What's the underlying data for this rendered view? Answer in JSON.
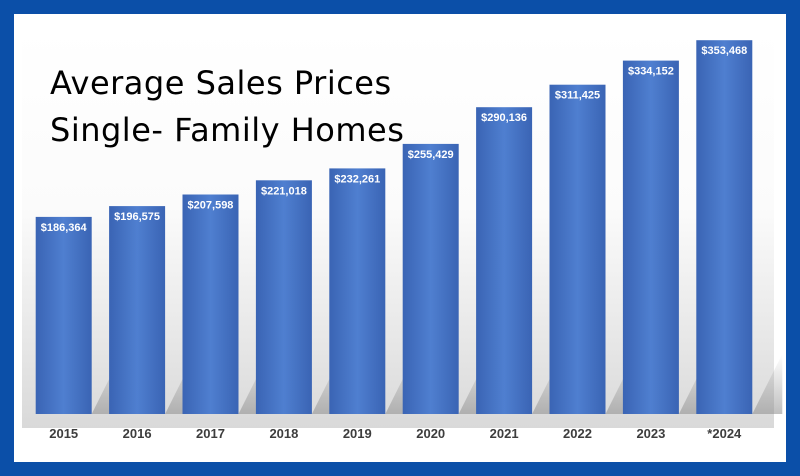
{
  "chart_data": {
    "type": "bar",
    "title_lines": [
      "Average Sales Prices",
      "Single- Family Homes"
    ],
    "categories": [
      "2015",
      "2016",
      "2017",
      "2018",
      "2019",
      "2020",
      "2021",
      "2022",
      "2023",
      "*2024"
    ],
    "values": [
      186364,
      196575,
      207598,
      221018,
      232261,
      255429,
      290136,
      311425,
      334152,
      353468
    ],
    "value_labels": [
      "$186,364",
      "$196,575",
      "$207,598",
      "$221,018",
      "$232,261",
      "$255,429",
      "$290,136",
      "$311,425",
      "$334,152",
      "$353,468"
    ],
    "xlabel": "",
    "ylabel": "",
    "ylim": [
      0,
      365000
    ],
    "grid": false,
    "legend": "none",
    "colors": {
      "bar": "#4472c4",
      "bar_light": "#4f7fd0",
      "bar_dark": "#3a64b4",
      "frame": "#0b4fa8"
    }
  }
}
